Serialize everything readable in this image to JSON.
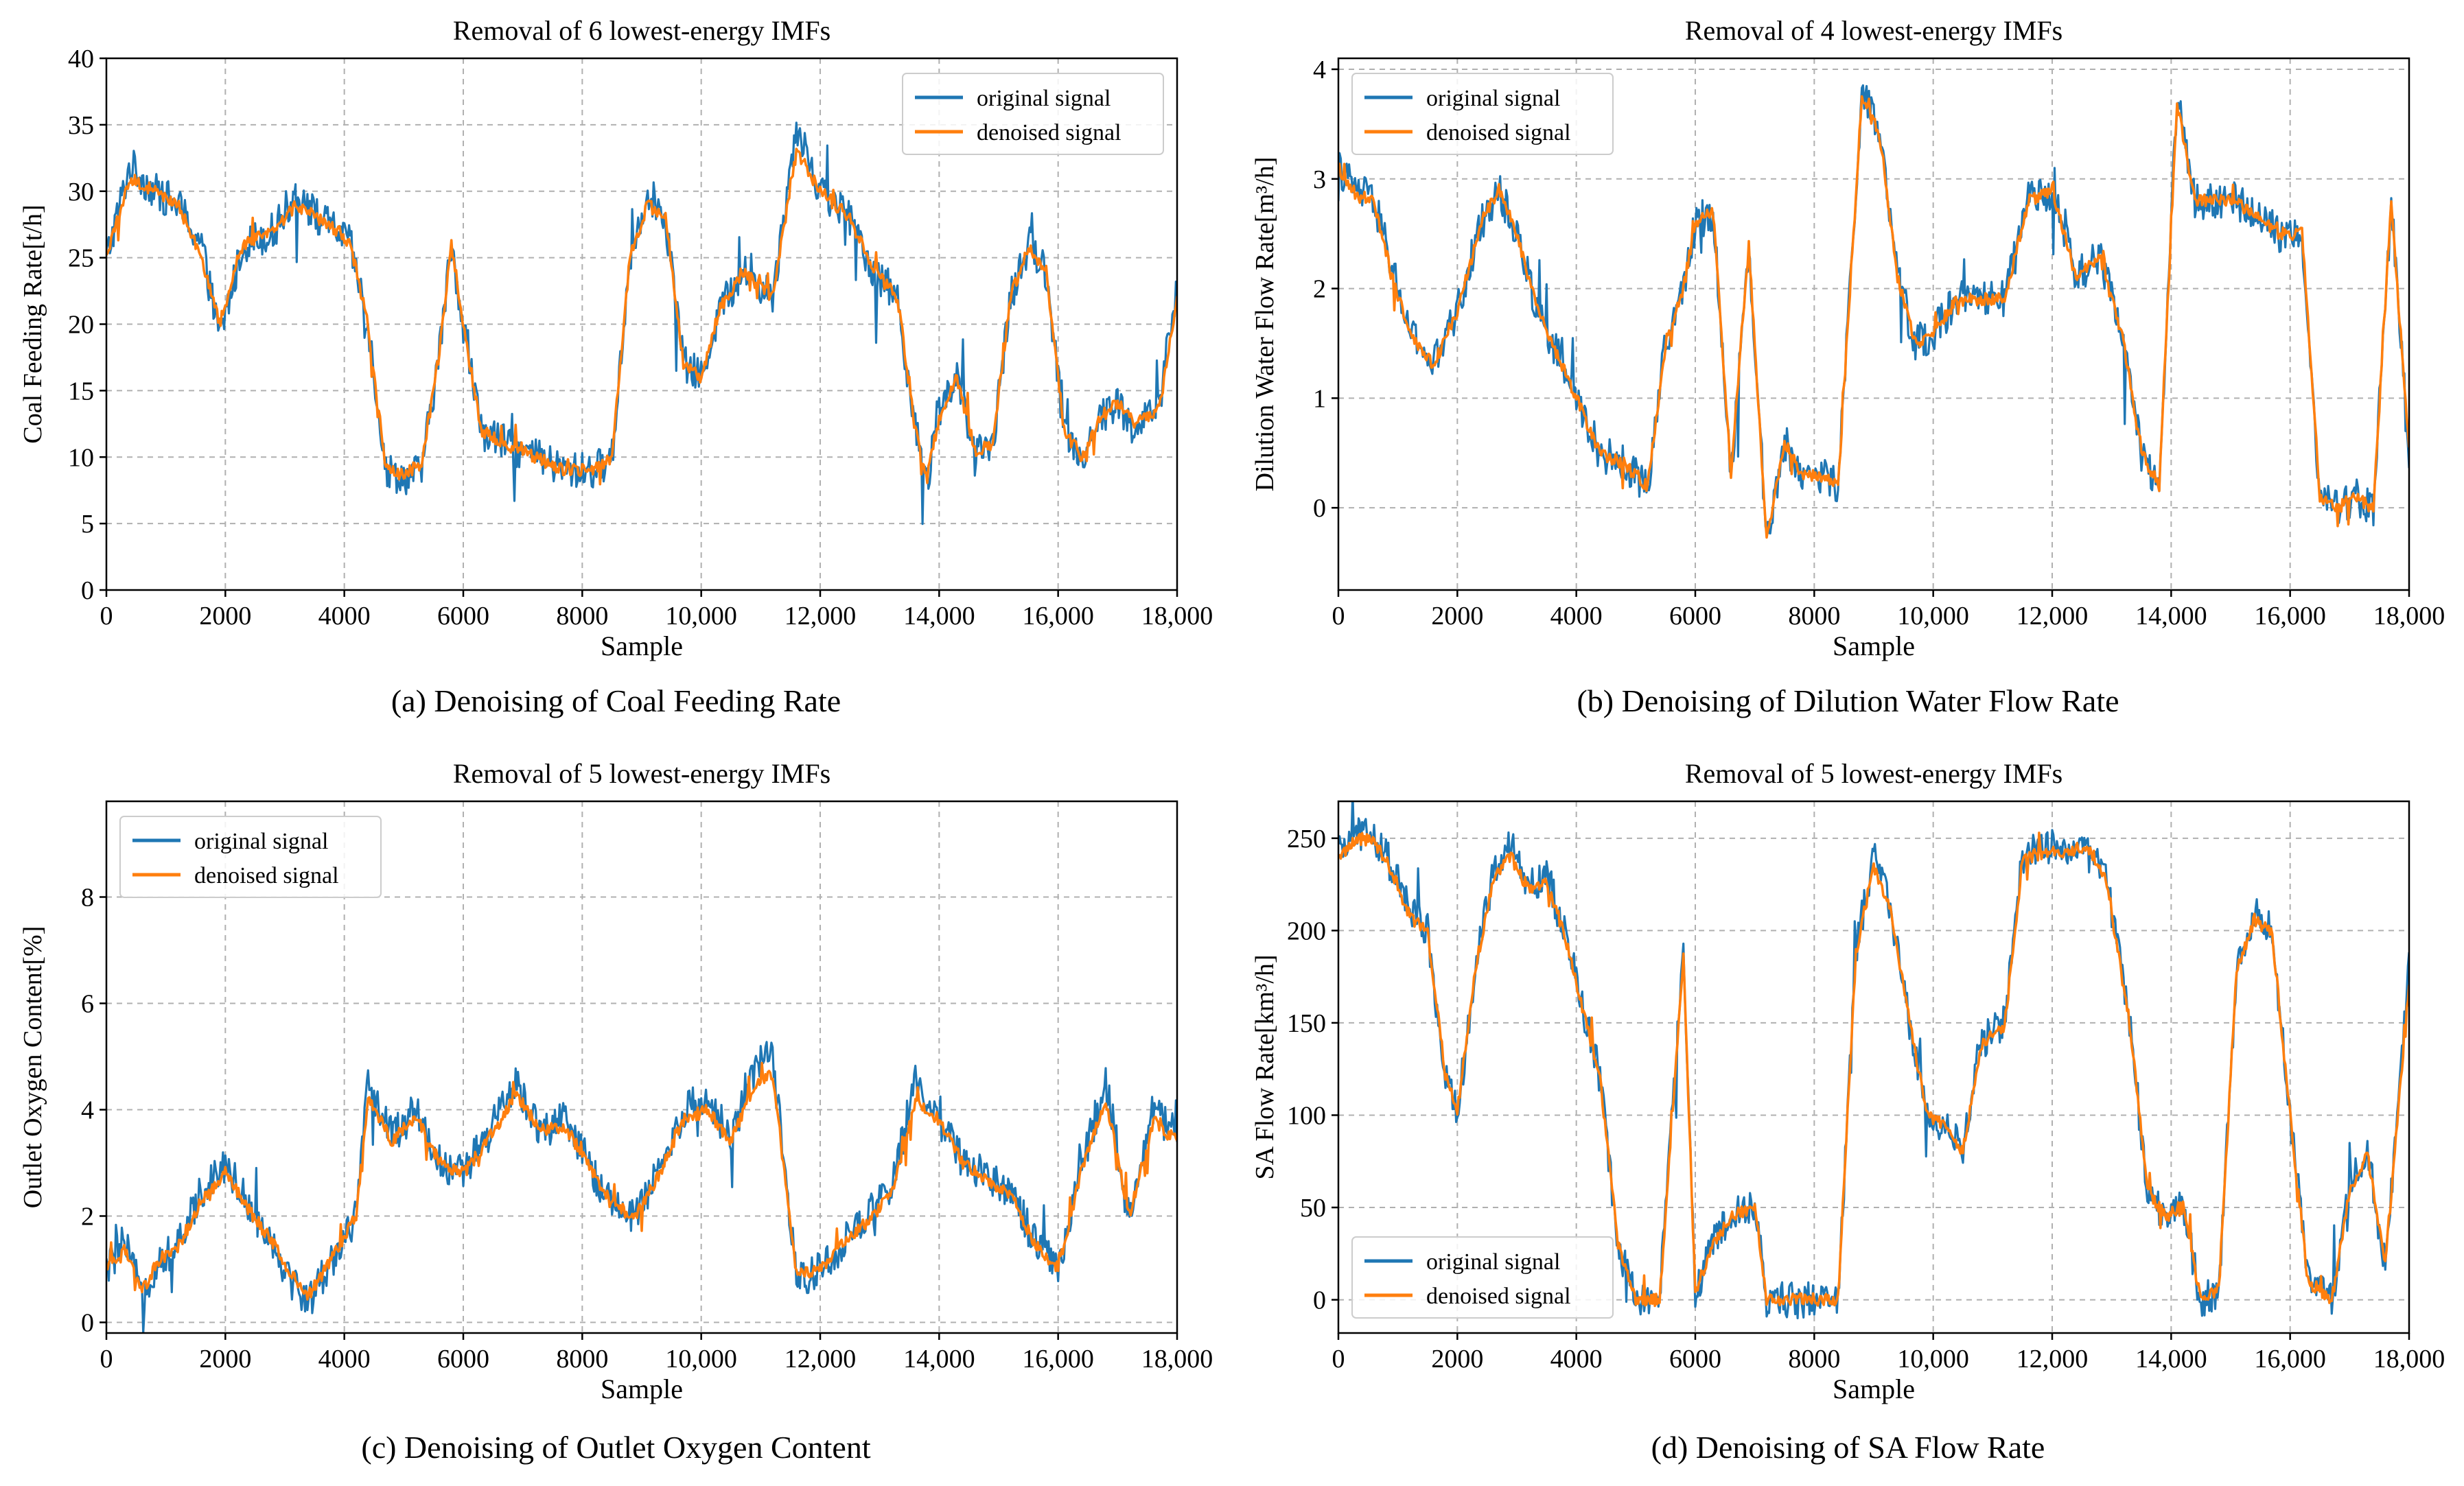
{
  "figure": {
    "colors": {
      "original": "#1f77b4",
      "denoised": "#ff7f0e",
      "grid": "#b0b0b0"
    }
  },
  "chart_data": [
    {
      "type": "line",
      "title": "Removal of 6 lowest-energy IMFs",
      "caption": "(a) Denoising of Coal Feeding Rate",
      "xlabel": "Sample",
      "ylabel": "Coal Feeding Rate[t/h]",
      "xlim": [
        0,
        18000
      ],
      "ylim": [
        0,
        40
      ],
      "xticks": [
        0,
        2000,
        4000,
        6000,
        8000,
        10000,
        12000,
        14000,
        16000,
        18000
      ],
      "xtick_labels": [
        "0",
        "2000",
        "4000",
        "6000",
        "8000",
        "10,000",
        "12,000",
        "14,000",
        "16,000",
        "18,000"
      ],
      "yticks": [
        0,
        5,
        10,
        15,
        20,
        25,
        30,
        35,
        40
      ],
      "ytick_labels": [
        "0",
        "5",
        "10",
        "15",
        "20",
        "25",
        "30",
        "35",
        "40"
      ],
      "grid": true,
      "legend_position": "top-right",
      "legend": [
        "original signal",
        "denoised signal"
      ],
      "x": [
        0,
        400,
        800,
        1200,
        1600,
        1900,
        2300,
        2800,
        3200,
        3550,
        3900,
        4100,
        4400,
        4700,
        5000,
        5300,
        5600,
        5800,
        6000,
        6300,
        6700,
        7200,
        7700,
        8200,
        8500,
        8800,
        9100,
        9400,
        9700,
        10000,
        10300,
        10700,
        11200,
        11600,
        12000,
        12500,
        12900,
        13300,
        13600,
        13800,
        14000,
        14300,
        14600,
        14900,
        15200,
        15500,
        15800,
        16100,
        16400,
        16700,
        17000,
        17300,
        17700,
        18000
      ],
      "series": [
        {
          "name": "original signal",
          "values": [
            25,
            32,
            30,
            29,
            26,
            19,
            26,
            27,
            30,
            28,
            27,
            26,
            20,
            9,
            8.5,
            9,
            18,
            26,
            20,
            12,
            11,
            10,
            9,
            9,
            10,
            25,
            30,
            28,
            17,
            16,
            21,
            24,
            22,
            35,
            30,
            28,
            24,
            22,
            12,
            8,
            14,
            16,
            10,
            11,
            22,
            26,
            24,
            12,
            10,
            13,
            14,
            12,
            14,
            23
          ]
        },
        {
          "name": "denoised signal",
          "values": [
            25,
            31,
            30,
            29,
            25,
            20,
            26,
            27,
            29,
            28,
            27,
            26,
            20,
            9,
            8.7,
            9.5,
            18,
            26,
            20,
            12,
            11,
            10,
            9,
            9,
            10,
            25,
            29,
            28,
            17,
            16,
            21,
            24,
            22,
            33,
            30,
            28,
            24,
            22,
            12,
            8.5,
            13,
            16,
            10.5,
            11,
            22,
            26,
            24,
            12,
            10,
            13,
            14,
            12.5,
            13.5,
            22
          ]
        }
      ]
    },
    {
      "type": "line",
      "title": "Removal of 4 lowest-energy IMFs",
      "caption": "(b) Denoising of Dilution Water Flow Rate",
      "xlabel": "Sample",
      "ylabel": "Dilution Water Flow Rate[m³/h]",
      "xlim": [
        0,
        18000
      ],
      "ylim": [
        -0.75,
        4.1
      ],
      "xticks": [
        0,
        2000,
        4000,
        6000,
        8000,
        10000,
        12000,
        14000,
        16000,
        18000
      ],
      "xtick_labels": [
        "0",
        "2000",
        "4000",
        "6000",
        "8000",
        "10,000",
        "12,000",
        "14,000",
        "16,000",
        "18,000"
      ],
      "yticks": [
        0,
        1,
        2,
        3,
        4
      ],
      "ytick_labels": [
        "0",
        "1",
        "2",
        "3",
        "4"
      ],
      "grid": true,
      "legend_position": "top-left",
      "legend": [
        "original signal",
        "denoised signal"
      ],
      "x": [
        0,
        300,
        600,
        900,
        1200,
        1600,
        2000,
        2400,
        2700,
        3000,
        3300,
        3600,
        4000,
        4400,
        4800,
        5200,
        5500,
        5800,
        6000,
        6300,
        6600,
        6900,
        7200,
        7500,
        7800,
        8100,
        8400,
        8800,
        9100,
        9400,
        9700,
        10000,
        10400,
        10800,
        11200,
        11600,
        12000,
        12400,
        12800,
        13200,
        13500,
        13800,
        14100,
        14400,
        14700,
        15000,
        15400,
        15800,
        16200,
        16500,
        16800,
        17100,
        17400,
        17700,
        18000
      ],
      "series": [
        {
          "name": "original signal",
          "values": [
            3.1,
            2.9,
            2.8,
            2.2,
            1.6,
            1.3,
            1.8,
            2.6,
            2.9,
            2.5,
            1.9,
            1.5,
            1.0,
            0.5,
            0.4,
            0.2,
            1.5,
            2.0,
            2.6,
            2.7,
            0.3,
            2.4,
            -0.3,
            0.6,
            0.3,
            0.3,
            0.2,
            3.8,
            3.4,
            2.1,
            1.5,
            1.6,
            1.9,
            1.9,
            1.9,
            2.8,
            2.9,
            2.1,
            2.3,
            1.5,
            0.5,
            0.2,
            3.8,
            2.8,
            2.8,
            2.8,
            2.7,
            2.5,
            2.5,
            0.1,
            0.0,
            0.1,
            0.0,
            2.8,
            0.5
          ]
        },
        {
          "name": "denoised signal",
          "values": [
            3.1,
            2.85,
            2.8,
            2.1,
            1.6,
            1.3,
            1.8,
            2.6,
            2.9,
            2.5,
            1.9,
            1.5,
            1.0,
            0.5,
            0.4,
            0.2,
            1.5,
            2.0,
            2.6,
            2.7,
            0.3,
            2.4,
            -0.3,
            0.6,
            0.3,
            0.3,
            0.2,
            3.75,
            3.4,
            2.1,
            1.5,
            1.6,
            1.9,
            1.9,
            1.9,
            2.8,
            2.9,
            2.1,
            2.3,
            1.5,
            0.5,
            0.2,
            3.7,
            2.8,
            2.8,
            2.8,
            2.7,
            2.5,
            2.5,
            0.1,
            0.0,
            0.1,
            0.0,
            2.8,
            0.5
          ]
        }
      ]
    },
    {
      "type": "line",
      "title": "Removal of 5 lowest-energy IMFs",
      "caption": "(c)  Denoising of Outlet Oxygen Content",
      "xlabel": "Sample",
      "ylabel": "Outlet Oxygen Content[%]",
      "xlim": [
        0,
        18000
      ],
      "ylim": [
        -0.2,
        9.8
      ],
      "xticks": [
        0,
        2000,
        4000,
        6000,
        8000,
        10000,
        12000,
        14000,
        16000,
        18000
      ],
      "xtick_labels": [
        "0",
        "2000",
        "4000",
        "6000",
        "8000",
        "10,000",
        "12,000",
        "14,000",
        "16,000",
        "18,000"
      ],
      "yticks": [
        0,
        2,
        4,
        6,
        8
      ],
      "ytick_labels": [
        "0",
        "2",
        "4",
        "6",
        "8"
      ],
      "grid": true,
      "legend_position": "top-left",
      "legend": [
        "original signal",
        "denoised signal"
      ],
      "x": [
        0,
        300,
        600,
        900,
        1200,
        1600,
        2000,
        2400,
        2800,
        3100,
        3400,
        3800,
        4200,
        4400,
        4800,
        5200,
        5600,
        6000,
        6400,
        6900,
        7300,
        7700,
        8100,
        8500,
        8900,
        9300,
        9700,
        10100,
        10500,
        10900,
        11200,
        11600,
        12000,
        12400,
        12800,
        13200,
        13600,
        14000,
        14400,
        14800,
        15200,
        15600,
        16000,
        16400,
        16800,
        17200,
        17600,
        18000
      ],
      "series": [
        {
          "name": "original signal",
          "values": [
            1.0,
            1.5,
            0.5,
            1.2,
            1.4,
            2.5,
            3.0,
            2.2,
            1.5,
            0.8,
            0.4,
            1.2,
            2.0,
            4.5,
            3.5,
            4.0,
            3.0,
            2.8,
            3.5,
            4.5,
            3.6,
            3.8,
            3.0,
            2.2,
            2.0,
            2.8,
            4.0,
            4.2,
            3.5,
            4.8,
            5.0,
            0.8,
            1.0,
            1.5,
            2.0,
            2.5,
            4.5,
            4.0,
            3.0,
            2.8,
            2.5,
            1.5,
            1.0,
            3.0,
            4.5,
            2.0,
            4.0,
            3.5
          ]
        },
        {
          "name": "denoised signal",
          "values": [
            1.0,
            1.4,
            0.6,
            1.2,
            1.4,
            2.3,
            2.8,
            2.1,
            1.5,
            0.9,
            0.5,
            1.2,
            2.0,
            4.2,
            3.4,
            3.9,
            3.0,
            2.8,
            3.4,
            4.3,
            3.6,
            3.7,
            3.0,
            2.2,
            2.0,
            2.8,
            3.8,
            4.0,
            3.4,
            4.5,
            4.7,
            0.9,
            1.0,
            1.5,
            1.9,
            2.4,
            4.2,
            3.8,
            3.0,
            2.7,
            2.4,
            1.5,
            1.0,
            2.9,
            4.2,
            2.0,
            3.8,
            3.4
          ]
        }
      ]
    },
    {
      "type": "line",
      "title": "Removal of 5 lowest-energy IMFs",
      "caption": "(d) Denoising of SA Flow Rate",
      "xlabel": "Sample",
      "ylabel": "SA Flow Rate[km³/h]",
      "xlim": [
        0,
        18000
      ],
      "ylim": [
        -18,
        270
      ],
      "xticks": [
        0,
        2000,
        4000,
        6000,
        8000,
        10000,
        12000,
        14000,
        16000,
        18000
      ],
      "xtick_labels": [
        "0",
        "2000",
        "4000",
        "6000",
        "8000",
        "10,000",
        "12,000",
        "14,000",
        "16,000",
        "18,000"
      ],
      "yticks": [
        0,
        50,
        100,
        150,
        200,
        250
      ],
      "ytick_labels": [
        "0",
        "50",
        "100",
        "150",
        "200",
        "250"
      ],
      "grid": true,
      "legend_position": "bottom-left",
      "legend": [
        "original signal",
        "denoised signal"
      ],
      "x": [
        0,
        300,
        600,
        900,
        1200,
        1500,
        1800,
        2000,
        2300,
        2600,
        2900,
        3200,
        3500,
        3800,
        4100,
        4400,
        4700,
        5000,
        5400,
        5800,
        6000,
        6300,
        6600,
        7000,
        7200,
        7600,
        8000,
        8400,
        8700,
        9000,
        9300,
        9600,
        9900,
        10200,
        10500,
        10800,
        11200,
        11500,
        11800,
        12200,
        12600,
        12900,
        13300,
        13600,
        13900,
        14200,
        14500,
        14800,
        15100,
        15400,
        15700,
        16000,
        16300,
        16700,
        17000,
        17300,
        17600,
        18000
      ],
      "series": [
        {
          "name": "original signal",
          "values": [
            240,
            255,
            250,
            235,
            210,
            200,
            120,
            100,
            180,
            230,
            245,
            225,
            230,
            200,
            160,
            120,
            30,
            0,
            0,
            190,
            5,
            30,
            45,
            50,
            0,
            0,
            0,
            0,
            190,
            240,
            210,
            150,
            100,
            95,
            80,
            140,
            150,
            240,
            245,
            245,
            250,
            230,
            150,
            60,
            45,
            50,
            0,
            5,
            180,
            210,
            200,
            100,
            10,
            0,
            60,
            80,
            20,
            180
          ]
        },
        {
          "name": "denoised signal",
          "values": [
            238,
            250,
            248,
            232,
            208,
            198,
            122,
            102,
            178,
            228,
            240,
            222,
            226,
            198,
            158,
            120,
            30,
            0,
            0,
            185,
            5,
            30,
            45,
            50,
            0,
            0,
            0,
            0,
            188,
            235,
            208,
            150,
            100,
            95,
            80,
            138,
            148,
            238,
            242,
            242,
            246,
            228,
            150,
            60,
            45,
            50,
            0,
            5,
            178,
            206,
            198,
            100,
            10,
            0,
            58,
            78,
            20,
            170
          ]
        }
      ]
    }
  ]
}
